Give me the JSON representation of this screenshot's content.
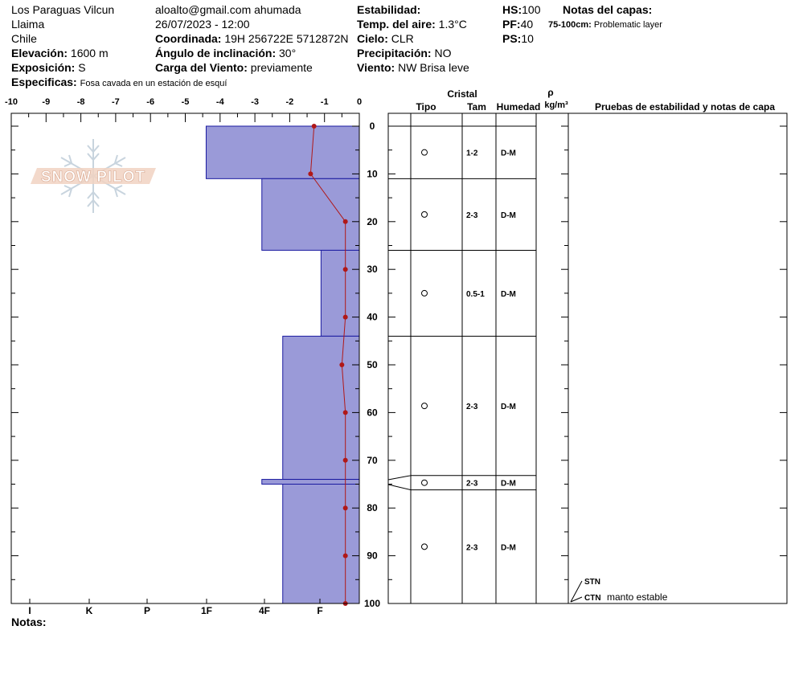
{
  "header": {
    "location": "Los Paraguas Vilcun",
    "region": "Llaima",
    "country": "Chile",
    "elevation_label": "Elevación:",
    "elevation_value": "1600 m",
    "aspect_label": "Exposición:",
    "aspect_value": "S",
    "specifics_label": "Especificas:",
    "specifics_value": "Fosa cavada en un estación de esquí",
    "observer": "aloalto@gmail.com ahumada",
    "datetime": "26/07/2023 - 12:00",
    "coord_label": "Coordinada:",
    "coord_value": "19H 256722E 5712872N",
    "slope_label": "Ángulo de inclinación:",
    "slope_value": "30°",
    "windload_label": "Carga del Viento:",
    "windload_value": "previamente",
    "stability_label": "Estabilidad:",
    "airtemp_label": "Temp. del aire:",
    "airtemp_value": "1.3°C",
    "sky_label": "Cielo:",
    "sky_value": "CLR",
    "precip_label": "Precipitación:",
    "precip_value": "NO",
    "wind_label": "Viento:",
    "wind_value": "NW Brisa leve",
    "hs_label": "HS:",
    "hs_value": "100",
    "pf_label": "PF:",
    "pf_value": "40",
    "ps_label": "PS:",
    "ps_value": "10",
    "layer_notes_label": "Notas del capas:",
    "layer_note_range": "75-100cm:",
    "layer_note_text": "Problematic layer"
  },
  "notes_label": "Notas:",
  "watermark": "SNOW PILOT",
  "table": {
    "crystal_label": "Cristal",
    "type_label": "Tipo",
    "size_label": "Tam",
    "moisture_label": "Humedad",
    "rho_label": "ρ",
    "density_unit": "kg/m³",
    "tests_label": "Pruebas de estabilidad y notas de capa"
  },
  "colors": {
    "hardness_fill": "#9a9ad8",
    "hardness_stroke": "#1a1aa0",
    "temp_line": "#b01818"
  },
  "chart_data": {
    "type": "snow-profile",
    "temp_axis": {
      "range": [
        -10,
        0
      ],
      "ticks": [
        "-10",
        "-9",
        "-8",
        "-7",
        "-6",
        "-5",
        "-4",
        "-3",
        "-2",
        "-1",
        "0"
      ]
    },
    "depth_axis": {
      "range": [
        0,
        100
      ],
      "ticks": [
        "0",
        "10",
        "20",
        "30",
        "40",
        "50",
        "60",
        "70",
        "80",
        "90",
        "100"
      ]
    },
    "hardness_scale": {
      "labels": [
        "I",
        "K",
        "P",
        "1F",
        "4F",
        "F"
      ]
    },
    "hardness_layers": [
      {
        "top": 0,
        "bottom": 11,
        "hardness_temp_equiv": -4.4
      },
      {
        "top": 11,
        "bottom": 26,
        "hardness_temp_equiv": -2.8
      },
      {
        "top": 26,
        "bottom": 44,
        "hardness_temp_equiv": -1.1
      },
      {
        "top": 44,
        "bottom": 74,
        "hardness_temp_equiv": -2.2
      },
      {
        "top": 74,
        "bottom": 75,
        "hardness_temp_equiv": -2.8
      },
      {
        "top": 75,
        "bottom": 100,
        "hardness_temp_equiv": -2.2
      }
    ],
    "temperature_profile": [
      {
        "depth": 0,
        "temp": -1.3
      },
      {
        "depth": 10,
        "temp": -1.4
      },
      {
        "depth": 20,
        "temp": -0.4
      },
      {
        "depth": 30,
        "temp": -0.4
      },
      {
        "depth": 40,
        "temp": -0.4
      },
      {
        "depth": 50,
        "temp": -0.5
      },
      {
        "depth": 60,
        "temp": -0.4
      },
      {
        "depth": 70,
        "temp": -0.4
      },
      {
        "depth": 80,
        "temp": -0.4
      },
      {
        "depth": 90,
        "temp": -0.4
      },
      {
        "depth": 100,
        "temp": -0.4
      }
    ],
    "crystal_layers": [
      {
        "top": 0,
        "bottom": 11,
        "size": "1-2",
        "moisture": "D-M"
      },
      {
        "top": 11,
        "bottom": 26,
        "size": "2-3",
        "moisture": "D-M"
      },
      {
        "top": 26,
        "bottom": 44,
        "size": "0.5-1",
        "moisture": "D-M"
      },
      {
        "top": 44,
        "bottom": 73.2,
        "size": "2-3",
        "moisture": "D-M"
      },
      {
        "top": 73.2,
        "bottom": 76.2,
        "size": "2-3",
        "moisture": "D-M"
      },
      {
        "top": 76.2,
        "bottom": 100,
        "size": "2-3",
        "moisture": "D-M"
      }
    ],
    "stability_tests": [
      {
        "depth": 100,
        "label": "STN",
        "note": ""
      },
      {
        "depth": 100,
        "label": "CTN",
        "note": "manto estable"
      }
    ]
  }
}
